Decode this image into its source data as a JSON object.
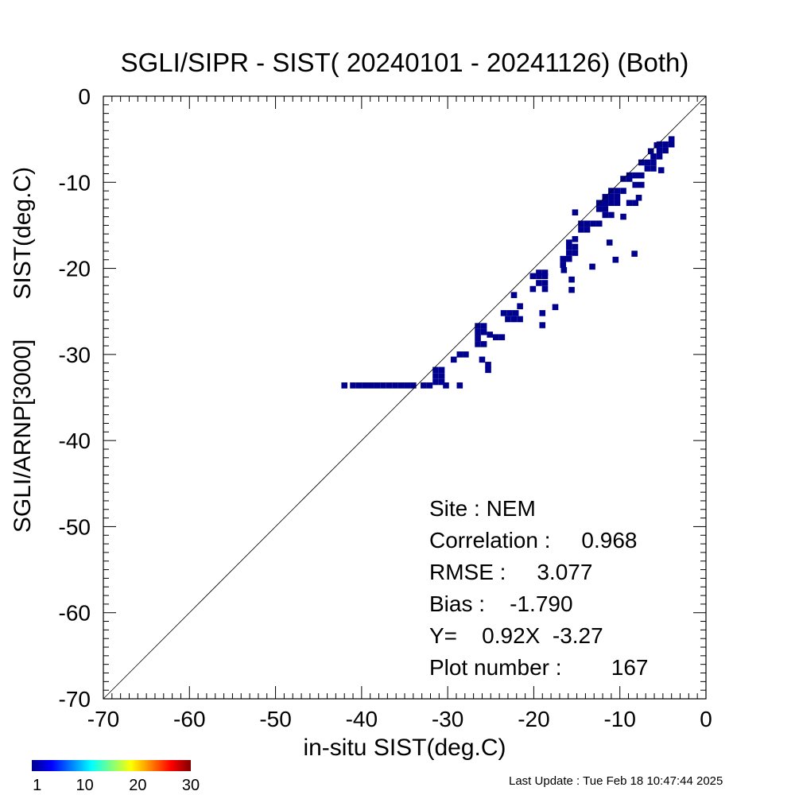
{
  "chart_data": {
    "type": "heatmap",
    "title": "SGLI/SIPR - SIST( 20240101 - 20241126) (Both)",
    "xlabel": "in-situ SIST(deg.C)",
    "ylabel": "SGLI/ARNP[3000]      SIST(deg.C)",
    "xlim": [
      -70,
      0
    ],
    "ylim": [
      -70,
      0
    ],
    "x_ticks": [
      -70,
      -60,
      -50,
      -40,
      -30,
      -20,
      -10,
      0
    ],
    "y_ticks": [
      -70,
      -60,
      -50,
      -40,
      -30,
      -20,
      -10,
      0
    ],
    "x_tick_labels": [
      "-70",
      "-60",
      "-50",
      "-40",
      "-30",
      "-20",
      "-10",
      "0"
    ],
    "y_tick_labels": [
      "-70",
      "-60",
      "-50",
      "-40",
      "-30",
      "-20",
      "-10",
      "0"
    ],
    "minor_tick_step": 1,
    "reference_line": "1:1",
    "grid": false,
    "cell_size": 0.7,
    "cells": [
      [
        -42,
        -33.6
      ],
      [
        -41,
        -33.6
      ],
      [
        -40.3,
        -33.6
      ],
      [
        -39.6,
        -33.6
      ],
      [
        -38.9,
        -33.6
      ],
      [
        -38.2,
        -33.6
      ],
      [
        -37.5,
        -33.6
      ],
      [
        -36.8,
        -33.6
      ],
      [
        -36.1,
        -33.6
      ],
      [
        -35.4,
        -33.6
      ],
      [
        -34.7,
        -33.6
      ],
      [
        -34,
        -33.6
      ],
      [
        -32.8,
        -33.6
      ],
      [
        -32.1,
        -33.6
      ],
      [
        -30.2,
        -33.6
      ],
      [
        -28.6,
        -33.6
      ],
      [
        -31.4,
        -33.2
      ],
      [
        -30.7,
        -33.2
      ],
      [
        -31.4,
        -32.5
      ],
      [
        -30.7,
        -32.5
      ],
      [
        -31.4,
        -31.8
      ],
      [
        -30.7,
        -31.8
      ],
      [
        -25.3,
        -31.8
      ],
      [
        -25.3,
        -31.2
      ],
      [
        -26,
        -30.6
      ],
      [
        -29.3,
        -30.6
      ],
      [
        -28.6,
        -30
      ],
      [
        -27.9,
        -30
      ],
      [
        -26.5,
        -28.8
      ],
      [
        -25.8,
        -28.8
      ],
      [
        -26.5,
        -28.1
      ],
      [
        -26.5,
        -27.4
      ],
      [
        -25.8,
        -27.4
      ],
      [
        -25.1,
        -27.7
      ],
      [
        -26.5,
        -26.7
      ],
      [
        -25.8,
        -26.7
      ],
      [
        -24.4,
        -28
      ],
      [
        -23.7,
        -28
      ],
      [
        -19,
        -26.6
      ],
      [
        -19,
        -25.2
      ],
      [
        -23.5,
        -25.2
      ],
      [
        -22.8,
        -25.2
      ],
      [
        -22.1,
        -25.2
      ],
      [
        -23,
        -25.9
      ],
      [
        -22.3,
        -25.9
      ],
      [
        -21.6,
        -25.9
      ],
      [
        -21.6,
        -24.4
      ],
      [
        -22.3,
        -23.1
      ],
      [
        -17.5,
        -24.5
      ],
      [
        -20.1,
        -22.4
      ],
      [
        -18.7,
        -22.4
      ],
      [
        -19.4,
        -21.7
      ],
      [
        -18.7,
        -21.7
      ],
      [
        -20.1,
        -20.9
      ],
      [
        -19.4,
        -20.9
      ],
      [
        -18.7,
        -20.9
      ],
      [
        -19.4,
        -20.5
      ],
      [
        -18.7,
        -20.5
      ],
      [
        -16.6,
        -19.6
      ],
      [
        -16.6,
        -18.9
      ],
      [
        -15.9,
        -18.9
      ],
      [
        -15.9,
        -18.2
      ],
      [
        -15.2,
        -18.2
      ],
      [
        -15.9,
        -17.5
      ],
      [
        -15.2,
        -17.5
      ],
      [
        -15.9,
        -17
      ],
      [
        -15.2,
        -16.6
      ],
      [
        -16.5,
        -20.2
      ],
      [
        -15.6,
        -21.3
      ],
      [
        -15.6,
        -22.5
      ],
      [
        -13.2,
        -19.8
      ],
      [
        -11.2,
        -17
      ],
      [
        -10.5,
        -19
      ],
      [
        -8.3,
        -18.3
      ],
      [
        -14.5,
        -15.5
      ],
      [
        -13.8,
        -15.5
      ],
      [
        -14.5,
        -14.8
      ],
      [
        -13.8,
        -14.8
      ],
      [
        -13.1,
        -14.8
      ],
      [
        -12.4,
        -14.8
      ],
      [
        -15.2,
        -13.5
      ],
      [
        -12.4,
        -13.1
      ],
      [
        -11.7,
        -13.1
      ],
      [
        -12.4,
        -12.4
      ],
      [
        -11.7,
        -12.4
      ],
      [
        -11,
        -12.4
      ],
      [
        -11.7,
        -13.8
      ],
      [
        -11,
        -13.8
      ],
      [
        -11.7,
        -11.7
      ],
      [
        -11,
        -11.7
      ],
      [
        -10.3,
        -11.7
      ],
      [
        -11,
        -11
      ],
      [
        -10.3,
        -11
      ],
      [
        -9.6,
        -11
      ],
      [
        -9.6,
        -9.6
      ],
      [
        -8.9,
        -9.6
      ],
      [
        -9.6,
        -14
      ],
      [
        -10.3,
        -12.4
      ],
      [
        -8.9,
        -12.4
      ],
      [
        -8.2,
        -12.4
      ],
      [
        -7.8,
        -11.8
      ],
      [
        -7.5,
        -10.3
      ],
      [
        -8.2,
        -10.3
      ],
      [
        -8.9,
        -9.2
      ],
      [
        -8.2,
        -9.2
      ],
      [
        -7.5,
        -9.2
      ],
      [
        -6.8,
        -8.4
      ],
      [
        -6.1,
        -8.4
      ],
      [
        -6.8,
        -7.7
      ],
      [
        -6.1,
        -7.7
      ],
      [
        -7.5,
        -7.7
      ],
      [
        -6.1,
        -7
      ],
      [
        -5.4,
        -7
      ],
      [
        -5.4,
        -6.3
      ],
      [
        -4.7,
        -6.3
      ],
      [
        -4.7,
        -5.6
      ],
      [
        -4,
        -5.6
      ],
      [
        -4,
        -5
      ],
      [
        -5.4,
        -5.6
      ],
      [
        -5.2,
        -8.6
      ],
      [
        -6.4,
        -6.4
      ],
      [
        -5.7,
        -5.7
      ]
    ],
    "stats": {
      "site": "Site : NEM",
      "correlation": "Correlation :     0.968",
      "rmse": "RMSE :     3.077",
      "bias": "Bias :    -1.790",
      "fit": "Y=    0.92X  -3.27",
      "plot_number": "Plot number :        167"
    },
    "colorbar": {
      "tick_labels": [
        "1",
        "10",
        "20",
        "30"
      ],
      "tick_values": [
        1,
        10,
        20,
        30
      ],
      "range": [
        0,
        30
      ],
      "colormap": "jet"
    },
    "cell_color": "#00008f"
  },
  "footer": {
    "last_update": "Last Update : Tue Feb 18 10:47:44 2025"
  }
}
